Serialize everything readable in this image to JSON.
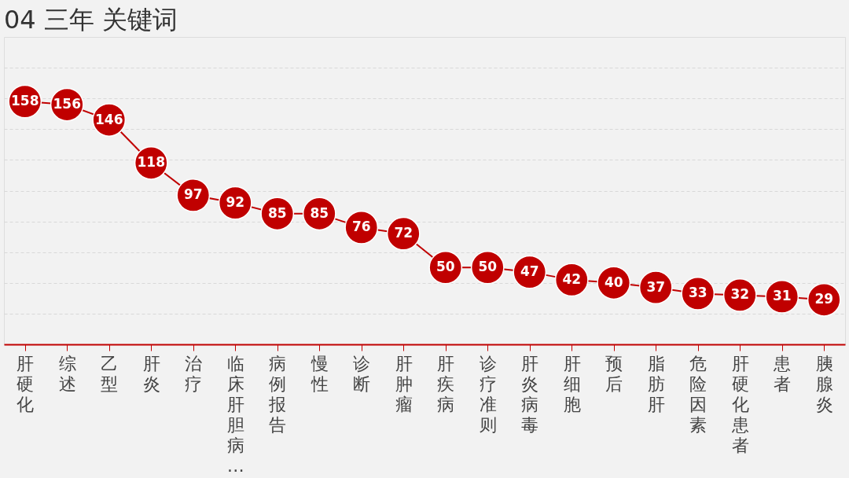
{
  "chart_data": {
    "type": "line",
    "title": "04 三年 关键词",
    "categories": [
      "肝硬化",
      "综述",
      "乙型",
      "肝炎",
      "治疗",
      "临床肝胆病…",
      "病例报告",
      "慢性",
      "诊断",
      "肝肿瘤",
      "肝疾病",
      "诊疗准则",
      "肝炎病毒",
      "肝细胞",
      "预后",
      "脂肪肝",
      "危险因素",
      "肝硬化患者",
      "患者",
      "胰腺炎"
    ],
    "series": [
      {
        "color": "#c00000",
        "values": [
          158,
          156,
          146,
          118,
          97,
          92,
          85,
          85,
          76,
          72,
          50,
          50,
          47,
          42,
          40,
          37,
          33,
          32,
          31,
          29
        ]
      }
    ],
    "ylim": [
      0,
      200
    ],
    "yticks": [
      {
        "value": 20,
        "label": null
      },
      {
        "value": 40,
        "label": null
      },
      {
        "value": 60,
        "label": null
      },
      {
        "value": 80,
        "label": null
      },
      {
        "value": 100,
        "label": null
      },
      {
        "value": 120,
        "label": null
      },
      {
        "value": 140,
        "label": null
      },
      {
        "value": 160,
        "label": null
      },
      {
        "value": 180,
        "label": null
      }
    ],
    "tick_labels": "x",
    "grid": "y",
    "marker": "circle",
    "line_style": "solid",
    "data_labels": true
  }
}
